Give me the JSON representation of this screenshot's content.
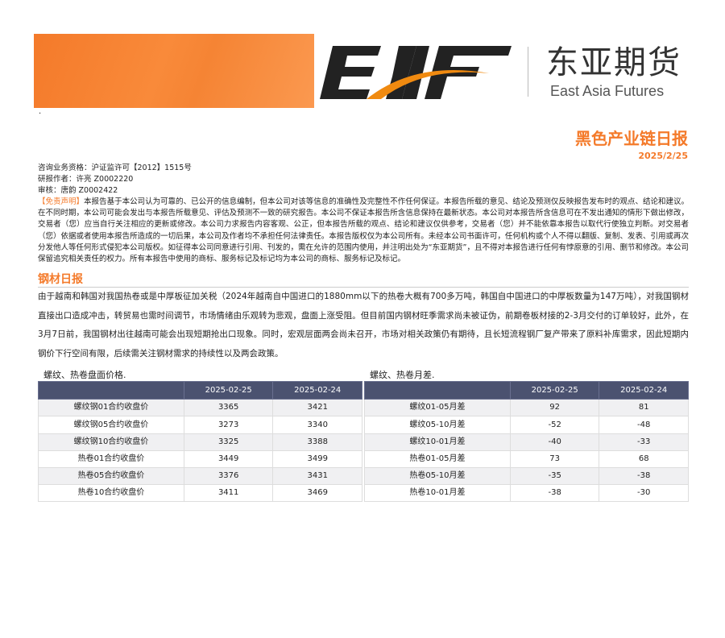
{
  "header": {
    "logo_text": "EAF",
    "company_cn": "东亚期货",
    "company_en": "East Asia Futures",
    "dot": "·",
    "report_title": "黑色产业链日报",
    "report_date": "2025/2/25",
    "accent": "#f47a2a"
  },
  "meta": {
    "license": "咨询业务资格：沪证监许可【2012】1515号",
    "author": "研报作者：许亮 Z0002220",
    "reviewer": "审核：唐韵 Z0002422"
  },
  "disclaimer": {
    "tag": "【免责声明】",
    "text": "本报告基于本公司认为可靠的、已公开的信息编制，但本公司对该等信息的准确性及完整性不作任何保证。本报告所载的意见、结论及预测仅反映报告发布时的观点、结论和建议。在不同时期，本公司可能会发出与本报告所载意见、评估及预测不一致的研究报告。本公司不保证本报告所含信息保持在最新状态。本公司对本报告所含信息可在不发出通知的情形下做出修改，交易者（您）应当自行关注相应的更新或修改。本公司力求报告内容客观、公正，但本报告所载的观点、结论和建议仅供参考，交易者（您）并不能依靠本报告以取代行使独立判断。对交易者（您）依据或者使用本报告所造成的一切后果，本公司及作者均不承担任何法律责任。本报告版权仅为本公司所有。未经本公司书面许可，任何机构或个人不得以翻版、复制、发表、引用或再次分发他人等任何形式侵犯本公司版权。如征得本公司同意进行引用、刊发的，需在允许的范围内使用，并注明出处为“东亚期货”，且不得对本报告进行任何有悖原意的引用、删节和修改。本公司保留追究相关责任的权力。所有本报告中使用的商标、服务标记及标记均为本公司的商标、服务标记及标记。"
  },
  "section": {
    "title": "钢材日报",
    "body": "由于越南和韩国对我国热卷或是中厚板征加关税（2024年越南自中国进口的1880mm以下的热卷大概有700多万吨，韩国自中国进口的中厚板数量为147万吨），对我国钢材直接出口造成冲击，转贸易也需时间调节，市场情绪由乐观转为悲观，盘面上涨受阻。但目前国内钢材旺季需求尚未被证伪，前期卷板材接的2-3月交付的订单较好，此外，在3月7日前，我国钢材出往越南可能会出现短期抢出口现象。同时，宏观层面两会尚未召开，市场对相关政策仍有期待，且长短流程钢厂复产带来了原料补库需求，因此短期内钢价下行空间有限，后续需关注钢材需求的持续性以及两会政策。"
  },
  "tables": [
    {
      "caption": "螺纹、热卷盘面价格.",
      "headers": [
        "",
        "2025-02-25",
        "2025-02-24"
      ],
      "rows": [
        [
          "螺纹钢01合约收盘价",
          "3365",
          "3421"
        ],
        [
          "螺纹钢05合约收盘价",
          "3273",
          "3340"
        ],
        [
          "螺纹钢10合约收盘价",
          "3325",
          "3388"
        ],
        [
          "热卷01合约收盘价",
          "3449",
          "3499"
        ],
        [
          "热卷05合约收盘价",
          "3376",
          "3431"
        ],
        [
          "热卷10合约收盘价",
          "3411",
          "3469"
        ]
      ]
    },
    {
      "caption": "螺纹、热卷月差.",
      "headers": [
        "",
        "2025-02-25",
        "2025-02-24"
      ],
      "rows": [
        [
          "螺纹01-05月差",
          "92",
          "81"
        ],
        [
          "螺纹05-10月差",
          "-52",
          "-48"
        ],
        [
          "螺纹10-01月差",
          "-40",
          "-33"
        ],
        [
          "热卷01-05月差",
          "73",
          "68"
        ],
        [
          "热卷05-10月差",
          "-35",
          "-38"
        ],
        [
          "热卷10-01月差",
          "-38",
          "-30"
        ]
      ]
    }
  ]
}
